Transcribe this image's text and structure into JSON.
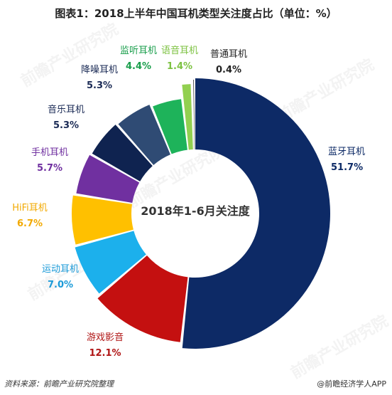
{
  "title": "图表1：2018上半年中国耳机类型关注度占比（单位：%）",
  "watermark": "前瞻产业研究院",
  "source": "资料来源：前瞻产业研究院整理",
  "brand": "@前瞻经济学人APP",
  "chart_data": {
    "type": "pie",
    "variant": "donut",
    "center_label": "2018年1-6月关注度",
    "unit": "%",
    "slices": [
      {
        "label": "蓝牙耳机",
        "value": 51.7,
        "display": "51.7%",
        "color": "#0d2a66",
        "label_color": "#0d2a66"
      },
      {
        "label": "游戏影音",
        "value": 12.1,
        "display": "12.1%",
        "color": "#c41010",
        "label_color": "#b01515"
      },
      {
        "label": "运动耳机",
        "value": 7.0,
        "display": "7.0%",
        "color": "#1cb0ec",
        "label_color": "#1a9ad8"
      },
      {
        "label": "HiFi耳机",
        "value": 6.7,
        "display": "6.7%",
        "color": "#ffc000",
        "label_color": "#f2a900"
      },
      {
        "label": "手机耳机",
        "value": 5.7,
        "display": "5.7%",
        "color": "#7030a0",
        "label_color": "#7030a0"
      },
      {
        "label": "音乐耳机",
        "value": 5.3,
        "display": "5.3%",
        "color": "#0f2350",
        "label_color": "#1a2a55"
      },
      {
        "label": "降噪耳机",
        "value": 5.3,
        "display": "5.3%",
        "color": "#2f4b74",
        "label_color": "#1a2a55"
      },
      {
        "label": "监听耳机",
        "value": 4.4,
        "display": "4.4%",
        "color": "#1eb35a",
        "label_color": "#1a9e4c"
      },
      {
        "label": "语音耳机",
        "value": 1.4,
        "display": "1.4%",
        "color": "#92d050",
        "label_color": "#7dc242"
      },
      {
        "label": "普通耳机",
        "value": 0.4,
        "display": "0.4%",
        "color": "#1f1f1f",
        "label_color": "#222222"
      }
    ]
  }
}
